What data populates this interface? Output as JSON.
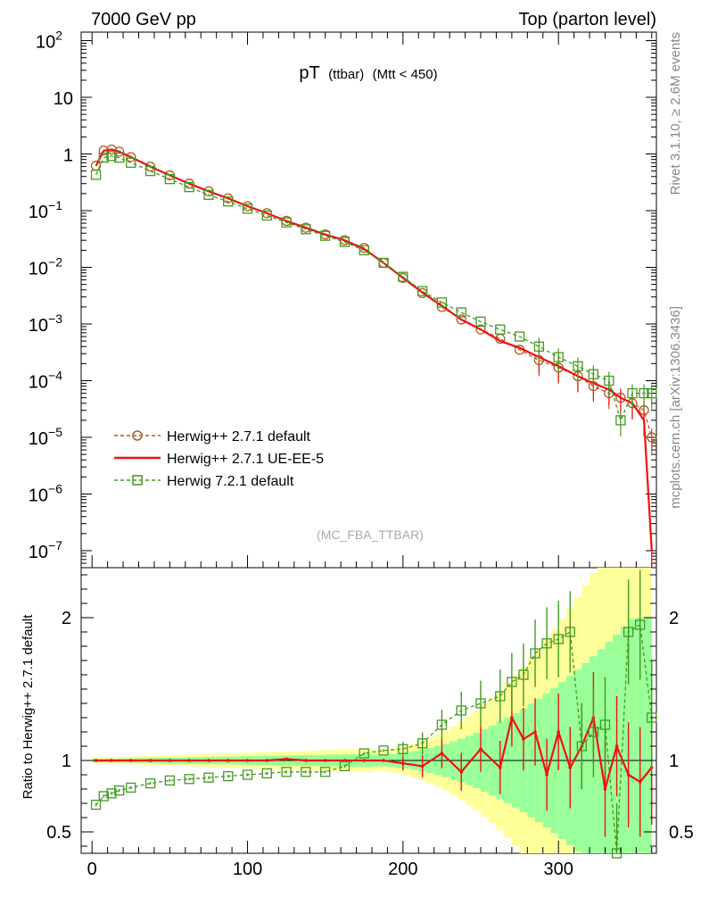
{
  "header": {
    "left": "7000 GeV pp",
    "right": "Top (parton level)"
  },
  "side_labels": {
    "rivet": "Rivet 3.1.10, ≥ 2.6M events",
    "mcplots": "mcplots.cern.ch [arXiv:1306.3436]"
  },
  "chart_data": {
    "type": "line",
    "title_main": "pT",
    "title_sub1": "(ttbar)",
    "title_sub2": "(Mtt < 450)",
    "watermark": "(MC_FBA_TTBAR)",
    "ratio_ylabel": "Ratio to Herwig++ 2.7.1 default",
    "xlim": [
      -7,
      363
    ],
    "x_ticks": [
      0,
      100,
      200,
      300
    ],
    "main_ylim_log10": [
      -7.3,
      2.15
    ],
    "main_yticks": [
      {
        "exp": 2,
        "label": "10",
        "sup": "2"
      },
      {
        "exp": 1,
        "label": "10",
        "sup": ""
      },
      {
        "exp": 0,
        "label": "1",
        "sup": ""
      },
      {
        "exp": -1,
        "label": "10",
        "sup": "−1"
      },
      {
        "exp": -2,
        "label": "10",
        "sup": "−2"
      },
      {
        "exp": -3,
        "label": "10",
        "sup": "−3"
      },
      {
        "exp": -4,
        "label": "10",
        "sup": "−4"
      },
      {
        "exp": -5,
        "label": "10",
        "sup": "−5"
      },
      {
        "exp": -6,
        "label": "10",
        "sup": "−6"
      },
      {
        "exp": -7,
        "label": "10",
        "sup": "−7"
      }
    ],
    "ratio_ylim": [
      0.35,
      2.35
    ],
    "ratio_yticks": [
      {
        "value": 0.5,
        "label": "0.5"
      },
      {
        "value": 1,
        "label": "1"
      },
      {
        "value": 2,
        "label": "2"
      }
    ],
    "legend": [
      {
        "label": "Herwig++ 2.7.1 default",
        "color": "#b35a1f",
        "style": "dashed",
        "marker": "circle"
      },
      {
        "label": "Herwig++ 2.7.1 UE-EE-5",
        "color": "#ee1111",
        "style": "solid",
        "marker": "none"
      },
      {
        "label": "Herwig 7.2.1 default",
        "color": "#449922",
        "style": "dashed",
        "marker": "square"
      }
    ],
    "colors": {
      "herwig_default": "#b35a1f",
      "ue_ee5": "#ee1111",
      "herwig7": "#449922",
      "band_yellow": "#ffff99",
      "band_green": "#99ff99"
    },
    "series": [
      {
        "name": "Herwig++ 2.7.1 default",
        "x": [
          2.5,
          7.5,
          12.5,
          17.5,
          25,
          37.5,
          50,
          62.5,
          75,
          87.5,
          100,
          112.5,
          125,
          137.5,
          150,
          162.5,
          175,
          187.5,
          200,
          212.5,
          225,
          237.5,
          250,
          262.5,
          275,
          287.5,
          300,
          312.5,
          322.5,
          332.5,
          340,
          347.5,
          355,
          360
        ],
        "y": [
          0.62,
          1.15,
          1.2,
          1.1,
          0.88,
          0.6,
          0.42,
          0.3,
          0.22,
          0.165,
          0.12,
          0.09,
          0.066,
          0.05,
          0.038,
          0.03,
          0.022,
          0.012,
          0.0065,
          0.0035,
          0.002,
          0.0012,
          0.0008,
          0.00055,
          0.00035,
          0.00023,
          0.00017,
          0.00012,
          8e-05,
          6e-05,
          5e-05,
          4e-05,
          3e-05,
          1e-05
        ]
      },
      {
        "name": "Herwig++ 2.7.1 UE-EE-5",
        "x": [
          2.5,
          7.5,
          12.5,
          17.5,
          25,
          37.5,
          50,
          62.5,
          75,
          87.5,
          100,
          112.5,
          125,
          137.5,
          150,
          162.5,
          175,
          187.5,
          200,
          212.5,
          225,
          237.5,
          250,
          262.5,
          275,
          287.5,
          300,
          312.5,
          322.5,
          332.5,
          340,
          347.5,
          355,
          360
        ],
        "y": [
          0.62,
          1.14,
          1.2,
          1.1,
          0.88,
          0.6,
          0.42,
          0.3,
          0.22,
          0.165,
          0.12,
          0.09,
          0.066,
          0.05,
          0.038,
          0.03,
          0.021,
          0.012,
          0.0065,
          0.0036,
          0.0021,
          0.0012,
          0.0008,
          0.0005,
          0.00038,
          0.00026,
          0.00018,
          0.00012,
          9e-05,
          7e-05,
          5e-05,
          4e-05,
          2e-05,
          1e-07
        ]
      },
      {
        "name": "Herwig 7.2.1 default",
        "x": [
          2.5,
          7.5,
          12.5,
          17.5,
          25,
          37.5,
          50,
          62.5,
          75,
          87.5,
          100,
          112.5,
          125,
          137.5,
          150,
          162.5,
          175,
          187.5,
          200,
          212.5,
          225,
          237.5,
          250,
          262.5,
          275,
          287.5,
          300,
          312.5,
          322.5,
          332.5,
          340,
          347.5,
          355,
          360
        ],
        "y": [
          0.43,
          0.86,
          0.92,
          0.86,
          0.7,
          0.5,
          0.36,
          0.26,
          0.19,
          0.145,
          0.108,
          0.082,
          0.062,
          0.047,
          0.036,
          0.028,
          0.02,
          0.012,
          0.0068,
          0.0038,
          0.0024,
          0.0016,
          0.0011,
          0.0008,
          0.0006,
          0.0004,
          0.00026,
          0.00018,
          0.00013,
          0.0001,
          2e-05,
          6e-05,
          6e-05,
          6e-05
        ]
      }
    ],
    "ratio_series": [
      {
        "name": "Herwig++ 2.7.1 UE-EE-5",
        "x": [
          2.5,
          12.5,
          25,
          37.5,
          50,
          62.5,
          75,
          87.5,
          100,
          112.5,
          125,
          137.5,
          150,
          162.5,
          175,
          187.5,
          200,
          212.5,
          225,
          237.5,
          250,
          262.5,
          270,
          277.5,
          285,
          292.5,
          300,
          307.5,
          315,
          322.5,
          330,
          337.5,
          345,
          352.5,
          360
        ],
        "y": [
          1.0,
          1.0,
          1.0,
          1.0,
          1.0,
          1.0,
          1.0,
          1.0,
          1.0,
          1.0,
          1.01,
          1.0,
          1.0,
          1.0,
          1.0,
          1.0,
          0.98,
          0.96,
          1.05,
          0.92,
          1.08,
          0.95,
          1.3,
          1.15,
          1.2,
          0.9,
          1.2,
          0.95,
          1.1,
          1.3,
          0.8,
          1.1,
          0.9,
          0.85,
          0.95
        ]
      },
      {
        "name": "Herwig 7.2.1 default",
        "x": [
          2.5,
          7.5,
          12.5,
          17.5,
          25,
          37.5,
          50,
          62.5,
          75,
          87.5,
          100,
          112.5,
          125,
          137.5,
          150,
          162.5,
          175,
          187.5,
          200,
          212.5,
          225,
          237.5,
          250,
          262.5,
          270,
          277.5,
          285,
          292.5,
          300,
          307.5,
          315,
          322.5,
          330,
          337.5,
          345,
          352.5,
          360
        ],
        "y": [
          0.69,
          0.75,
          0.77,
          0.79,
          0.81,
          0.84,
          0.86,
          0.87,
          0.88,
          0.89,
          0.9,
          0.91,
          0.92,
          0.92,
          0.92,
          0.96,
          1.05,
          1.07,
          1.08,
          1.12,
          1.25,
          1.35,
          1.4,
          1.45,
          1.55,
          1.6,
          1.75,
          1.82,
          1.85,
          1.9,
          1.1,
          1.2,
          1.25,
          0.35,
          1.9,
          1.95,
          1.3
        ]
      }
    ]
  }
}
